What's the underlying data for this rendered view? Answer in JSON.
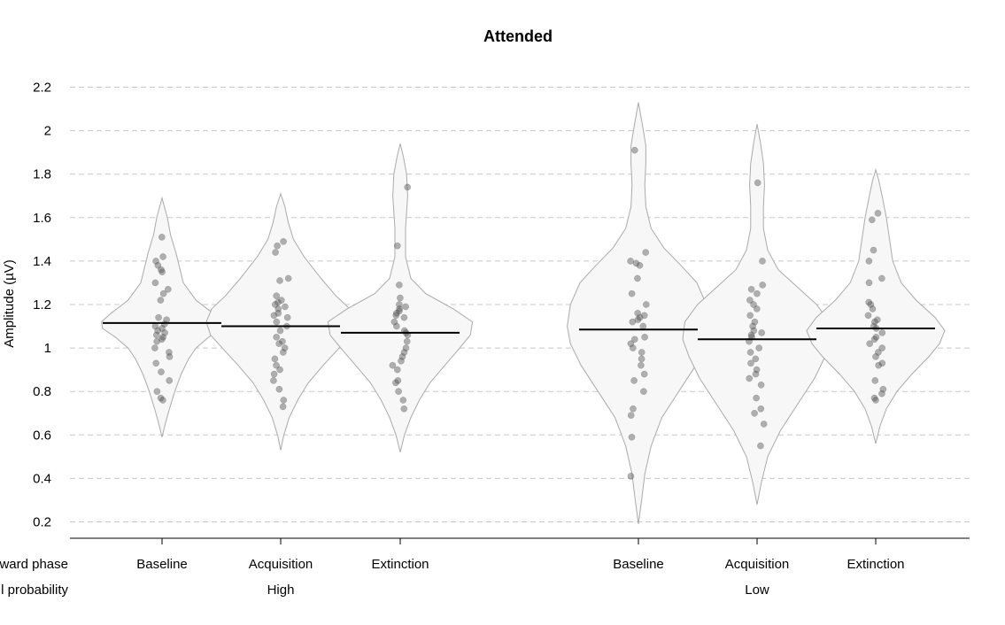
{
  "chart_data": {
    "type": "violin",
    "title": "Attended",
    "ylabel": "Amplitude (µV)",
    "ylim": [
      0.13,
      2.3
    ],
    "yticks": [
      "0.2",
      "0.4",
      "0.6",
      "0.8",
      "1",
      "1.2",
      "1.4",
      "1.6",
      "1.8",
      "2",
      "2.2"
    ],
    "grid": true,
    "factor_labels": [
      "ward phase",
      "l probability"
    ],
    "groups": [
      {
        "name": "High",
        "conditions": [
          {
            "name": "Baseline",
            "mean": 1.115,
            "shape": [
              [
                0.59,
                0
              ],
              [
                0.65,
                0.03
              ],
              [
                0.72,
                0.07
              ],
              [
                0.8,
                0.12
              ],
              [
                0.88,
                0.18
              ],
              [
                0.95,
                0.25
              ],
              [
                1.0,
                0.32
              ],
              [
                1.05,
                0.44
              ],
              [
                1.09,
                0.56
              ],
              [
                1.12,
                0.57
              ],
              [
                1.16,
                0.48
              ],
              [
                1.22,
                0.32
              ],
              [
                1.3,
                0.2
              ],
              [
                1.38,
                0.16
              ],
              [
                1.44,
                0.13
              ],
              [
                1.52,
                0.08
              ],
              [
                1.6,
                0.05
              ],
              [
                1.69,
                0
              ]
            ],
            "points": [
              1.51,
              1.42,
              1.4,
              1.38,
              1.36,
              1.35,
              1.3,
              1.27,
              1.25,
              1.22,
              1.14,
              1.13,
              1.11,
              1.1,
              1.09,
              1.08,
              1.07,
              1.06,
              1.05,
              1.04,
              1.03,
              1.0,
              0.98,
              0.96,
              0.93,
              0.89,
              0.85,
              0.8,
              0.77,
              0.76
            ]
          },
          {
            "name": "Acquisition",
            "mean": 1.1,
            "shape": [
              [
                0.53,
                0
              ],
              [
                0.6,
                0.03
              ],
              [
                0.68,
                0.08
              ],
              [
                0.76,
                0.16
              ],
              [
                0.84,
                0.26
              ],
              [
                0.92,
                0.4
              ],
              [
                1.0,
                0.55
              ],
              [
                1.06,
                0.66
              ],
              [
                1.12,
                0.7
              ],
              [
                1.18,
                0.65
              ],
              [
                1.24,
                0.52
              ],
              [
                1.32,
                0.38
              ],
              [
                1.42,
                0.22
              ],
              [
                1.5,
                0.12
              ],
              [
                1.58,
                0.07
              ],
              [
                1.65,
                0.04
              ],
              [
                1.71,
                0
              ]
            ],
            "points": [
              1.49,
              1.47,
              1.44,
              1.32,
              1.31,
              1.24,
              1.22,
              1.21,
              1.2,
              1.19,
              1.18,
              1.16,
              1.15,
              1.14,
              1.12,
              1.1,
              1.08,
              1.05,
              1.03,
              1.02,
              1.0,
              0.98,
              0.95,
              0.92,
              0.9,
              0.88,
              0.85,
              0.81,
              0.76,
              0.73
            ]
          },
          {
            "name": "Extinction",
            "mean": 1.07,
            "shape": [
              [
                0.52,
                0
              ],
              [
                0.6,
                0.04
              ],
              [
                0.68,
                0.1
              ],
              [
                0.76,
                0.18
              ],
              [
                0.84,
                0.28
              ],
              [
                0.92,
                0.42
              ],
              [
                1.0,
                0.56
              ],
              [
                1.06,
                0.66
              ],
              [
                1.12,
                0.68
              ],
              [
                1.18,
                0.5
              ],
              [
                1.25,
                0.24
              ],
              [
                1.32,
                0.1
              ],
              [
                1.42,
                0.05
              ],
              [
                1.55,
                0.05
              ],
              [
                1.7,
                0.07
              ],
              [
                1.8,
                0.06
              ],
              [
                1.88,
                0.03
              ],
              [
                1.94,
                0
              ]
            ],
            "points": [
              1.74,
              1.47,
              1.29,
              1.23,
              1.2,
              1.19,
              1.18,
              1.17,
              1.16,
              1.15,
              1.14,
              1.12,
              1.1,
              1.08,
              1.07,
              1.06,
              1.03,
              1.0,
              0.98,
              0.96,
              0.94,
              0.92,
              0.9,
              0.85,
              0.84,
              0.8,
              0.76,
              0.72
            ]
          }
        ]
      },
      {
        "name": "Low",
        "conditions": [
          {
            "name": "Baseline",
            "mean": 1.085,
            "shape": [
              [
                0.19,
                0
              ],
              [
                0.3,
                0.03
              ],
              [
                0.42,
                0.06
              ],
              [
                0.55,
                0.12
              ],
              [
                0.68,
                0.22
              ],
              [
                0.8,
                0.38
              ],
              [
                0.92,
                0.54
              ],
              [
                1.02,
                0.64
              ],
              [
                1.1,
                0.67
              ],
              [
                1.2,
                0.64
              ],
              [
                1.3,
                0.55
              ],
              [
                1.38,
                0.4
              ],
              [
                1.46,
                0.24
              ],
              [
                1.55,
                0.12
              ],
              [
                1.65,
                0.07
              ],
              [
                1.75,
                0.06
              ],
              [
                1.85,
                0.07
              ],
              [
                1.93,
                0.07
              ],
              [
                2.02,
                0.04
              ],
              [
                2.13,
                0
              ]
            ],
            "points": [
              1.91,
              1.44,
              1.4,
              1.39,
              1.38,
              1.32,
              1.25,
              1.2,
              1.16,
              1.15,
              1.14,
              1.13,
              1.12,
              1.1,
              1.05,
              1.04,
              1.02,
              1.0,
              0.98,
              0.95,
              0.92,
              0.88,
              0.85,
              0.8,
              0.72,
              0.69,
              0.59,
              0.41
            ]
          },
          {
            "name": "Acquisition",
            "mean": 1.04,
            "shape": [
              [
                0.28,
                0
              ],
              [
                0.38,
                0.04
              ],
              [
                0.5,
                0.1
              ],
              [
                0.62,
                0.22
              ],
              [
                0.74,
                0.38
              ],
              [
                0.86,
                0.54
              ],
              [
                0.96,
                0.64
              ],
              [
                1.04,
                0.7
              ],
              [
                1.12,
                0.68
              ],
              [
                1.2,
                0.56
              ],
              [
                1.28,
                0.38
              ],
              [
                1.36,
                0.2
              ],
              [
                1.45,
                0.1
              ],
              [
                1.55,
                0.06
              ],
              [
                1.65,
                0.06
              ],
              [
                1.75,
                0.07
              ],
              [
                1.85,
                0.06
              ],
              [
                1.95,
                0.03
              ],
              [
                2.03,
                0
              ]
            ],
            "points": [
              1.76,
              1.4,
              1.29,
              1.27,
              1.25,
              1.22,
              1.2,
              1.18,
              1.15,
              1.12,
              1.1,
              1.08,
              1.07,
              1.06,
              1.05,
              1.03,
              1.0,
              0.98,
              0.95,
              0.93,
              0.9,
              0.88,
              0.86,
              0.83,
              0.77,
              0.72,
              0.7,
              0.65,
              0.55
            ]
          },
          {
            "name": "Extinction",
            "mean": 1.09,
            "shape": [
              [
                0.56,
                0
              ],
              [
                0.64,
                0.04
              ],
              [
                0.72,
                0.1
              ],
              [
                0.8,
                0.2
              ],
              [
                0.88,
                0.34
              ],
              [
                0.96,
                0.5
              ],
              [
                1.02,
                0.6
              ],
              [
                1.08,
                0.65
              ],
              [
                1.14,
                0.56
              ],
              [
                1.22,
                0.38
              ],
              [
                1.3,
                0.24
              ],
              [
                1.4,
                0.16
              ],
              [
                1.5,
                0.13
              ],
              [
                1.6,
                0.1
              ],
              [
                1.7,
                0.06
              ],
              [
                1.77,
                0.03
              ],
              [
                1.82,
                0
              ]
            ],
            "points": [
              1.62,
              1.59,
              1.45,
              1.4,
              1.32,
              1.3,
              1.21,
              1.2,
              1.18,
              1.15,
              1.13,
              1.12,
              1.1,
              1.09,
              1.07,
              1.05,
              1.04,
              1.02,
              1.0,
              0.98,
              0.96,
              0.93,
              0.92,
              0.85,
              0.81,
              0.79,
              0.77,
              0.76
            ]
          }
        ]
      }
    ]
  }
}
